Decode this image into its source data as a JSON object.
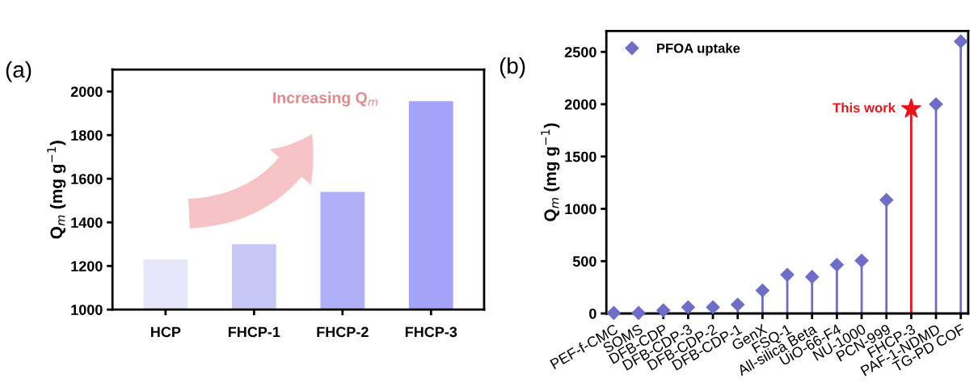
{
  "chart_data": [
    {
      "type": "bar",
      "ylabel": "Q$_{m}$ (mg g$^{−1}$)",
      "categories": [
        "HCP",
        "FHCP-1",
        "FHCP-2",
        "FHCP-3"
      ],
      "values": [
        1230,
        1300,
        1540,
        1955
      ],
      "colors": [
        "#e6e6fa",
        "#c8c8f8",
        "#b0b0f8",
        "#a4a4f8"
      ],
      "ylim": [
        1000,
        2100
      ],
      "yticks": [
        1000,
        1200,
        1400,
        1600,
        1800,
        2000
      ],
      "annotations": [
        "(a)",
        "Increasing Q$_{m}$"
      ]
    },
    {
      "type": "lollipop",
      "ylabel": "Q$_{m}$ (mg g$^{−1}$)",
      "categories": [
        "PEF-f-CMC",
        "SOMS",
        "DFB-CDP",
        "DFB-CDP-3",
        "DFB-CDP-2",
        "DFB-CDP-1",
        "GenX",
        "FSQ-1",
        "All-silica Beta",
        "UiO-66-F4",
        "NU-1000",
        "PCN-999",
        "FHCP-3",
        "PAF-1-NDMD",
        "TG-PD COF"
      ],
      "series": [
        {
          "name": "PFOA uptake",
          "color": "#6e6ec8",
          "marker": "diamond",
          "values": [
            5,
            5,
            30,
            60,
            60,
            85,
            220,
            370,
            350,
            465,
            505,
            1085,
            null,
            2000,
            2600
          ]
        },
        {
          "color": "#e8141c",
          "marker": "star",
          "values": [
            null,
            null,
            null,
            null,
            null,
            null,
            null,
            null,
            null,
            null,
            null,
            null,
            1955,
            null,
            null
          ]
        }
      ],
      "ylim": [
        0,
        2700
      ],
      "yticks": [
        0,
        500,
        1000,
        1500,
        2000,
        2500
      ],
      "legend": "top left",
      "annotations": [
        "(b)",
        {
          "text": "This work",
          "x": "FHCP-3",
          "y": 1955
        }
      ]
    }
  ]
}
